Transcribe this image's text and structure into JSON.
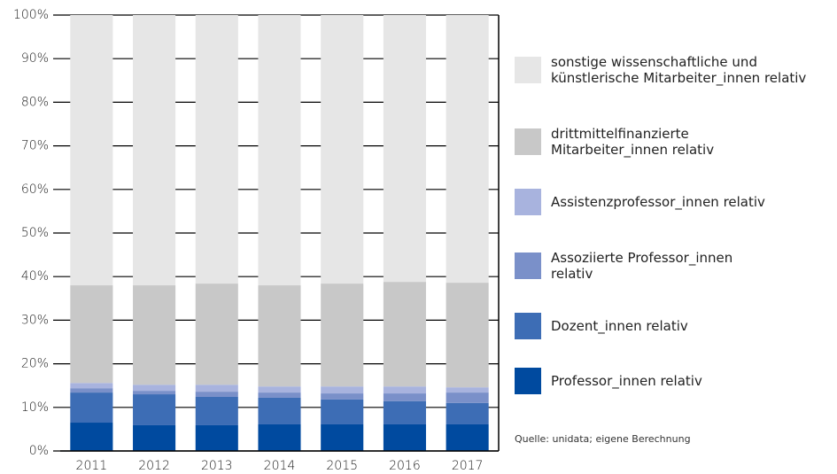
{
  "chart_data": {
    "type": "stacked_bar",
    "categories": [
      "2011",
      "2012",
      "2013",
      "2014",
      "2015",
      "2016",
      "2017"
    ],
    "series": [
      {
        "name": "Professor_innen relativ",
        "color": "#004a9f",
        "values": [
          6.5,
          5.9,
          5.9,
          6.1,
          6.1,
          6.1,
          6.1
        ]
      },
      {
        "name": "Dozent_innen relativ",
        "color": "#3d6db5",
        "values": [
          6.9,
          7.1,
          6.5,
          6.1,
          5.7,
          5.3,
          4.9
        ]
      },
      {
        "name": "Assoziierte Professor_innen relativ",
        "color": "#7a90c9",
        "values": [
          1.0,
          0.8,
          1.2,
          1.2,
          1.4,
          1.8,
          2.4
        ]
      },
      {
        "name": "Assistenzprofessor_innen relativ",
        "color": "#a8b3de",
        "values": [
          1.2,
          1.4,
          1.6,
          1.4,
          1.6,
          1.6,
          1.2
        ]
      },
      {
        "name": "drittmittelfinanzierte Mitarbeiter_innen relativ",
        "color": "#c8c8c8",
        "values": [
          22.4,
          22.8,
          23.2,
          23.2,
          23.6,
          24.0,
          24.0
        ]
      },
      {
        "name": "sonstige wissenschaftliche und künstlerische Mitarbeiter_innen relativ",
        "color": "#e6e6e6",
        "values": [
          62.0,
          62.0,
          61.6,
          62.0,
          61.6,
          61.2,
          61.4
        ]
      }
    ],
    "ylim": [
      0,
      100
    ],
    "yticks": [
      {
        "value": 0,
        "label": "0%"
      },
      {
        "value": 10,
        "label": "10%"
      },
      {
        "value": 20,
        "label": "20%"
      },
      {
        "value": 30,
        "label": "30%"
      },
      {
        "value": 40,
        "label": "40%"
      },
      {
        "value": 50,
        "label": "50%"
      },
      {
        "value": 60,
        "label": "60%"
      },
      {
        "value": 70,
        "label": "70%"
      },
      {
        "value": 80,
        "label": "80%"
      },
      {
        "value": 90,
        "label": "90%"
      },
      {
        "value": 100,
        "label": "100%"
      }
    ],
    "grid": true,
    "note": "Quelle: unidata; eigene Berechnung"
  }
}
